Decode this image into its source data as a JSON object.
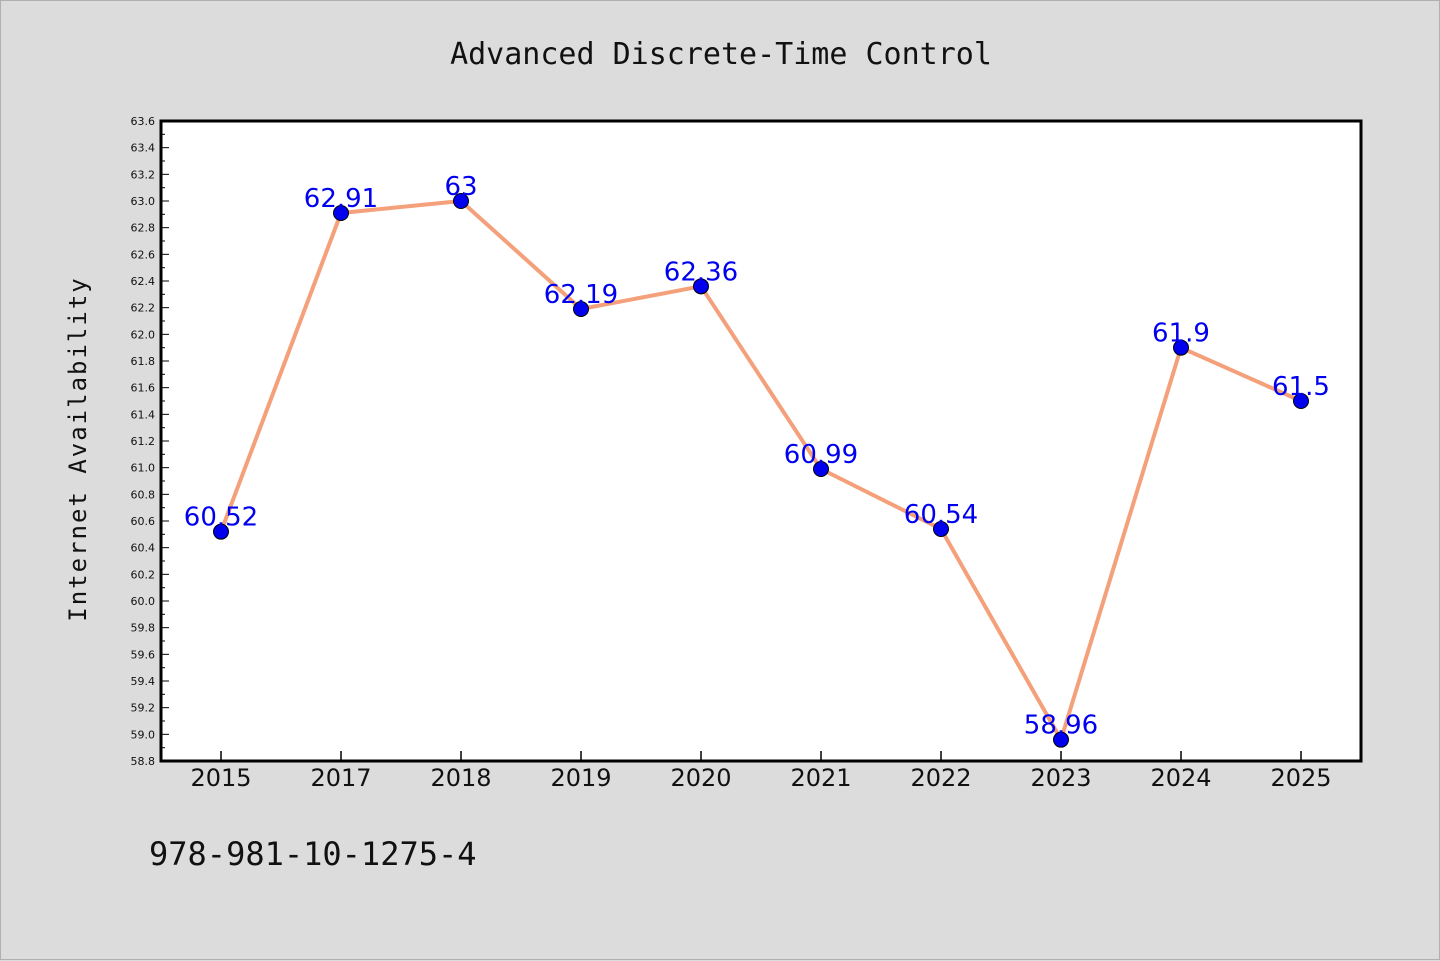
{
  "chart_data": {
    "type": "line",
    "title": "Advanced Discrete-Time Control",
    "xlabel": "",
    "ylabel": "Internet Availability",
    "categories": [
      "2015",
      "2017",
      "2018",
      "2019",
      "2020",
      "2021",
      "2022",
      "2023",
      "2024",
      "2025"
    ],
    "series": [
      {
        "values": [
          60.52,
          62.91,
          63,
          62.19,
          62.36,
          60.99,
          60.54,
          58.96,
          61.9,
          61.5
        ],
        "labels": [
          "60.52",
          "62.91",
          "63",
          "62.19",
          "62.36",
          "60.99",
          "60.54",
          "58.96",
          "61.9",
          "61.5"
        ],
        "line_color": "#f4a07a",
        "marker_color": "#0000ee"
      }
    ],
    "ylim": [
      58.8,
      63.6
    ],
    "yticks": [
      "58.8",
      "59.0",
      "59.2",
      "59.4",
      "59.6",
      "59.8",
      "60.0",
      "60.2",
      "60.4",
      "60.6",
      "60.8",
      "61.0",
      "61.2",
      "61.4",
      "61.6",
      "61.8",
      "62.0",
      "62.2",
      "62.4",
      "62.6",
      "62.8",
      "63.0",
      "63.2",
      "63.4",
      "63.6"
    ],
    "grid": false,
    "legend": false
  },
  "footer": {
    "text": "978-981-10-1275-4"
  }
}
